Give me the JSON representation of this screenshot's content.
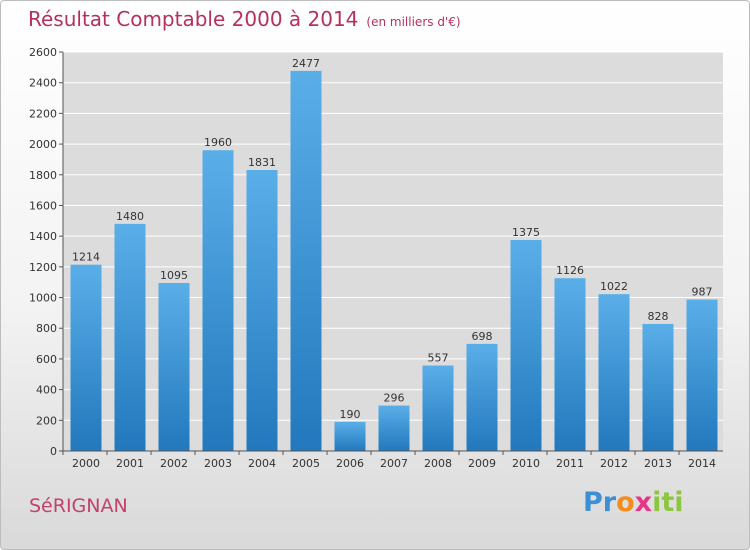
{
  "header": {
    "title": "Résultat Comptable 2000 à 2014",
    "subtitle": "(en milliers d'€)"
  },
  "footer": {
    "place": "SéRIGNAN",
    "logo_text": "Proxiti"
  },
  "colors": {
    "bar_top": "#5aaee8",
    "bar_bottom": "#2378bd",
    "title": "#b5315c",
    "grid": "#ffffff"
  },
  "chart_data": {
    "type": "bar",
    "title": "Résultat Comptable 2000 à 2014",
    "subtitle": "(en milliers d'€)",
    "categories": [
      "2000",
      "2001",
      "2002",
      "2003",
      "2004",
      "2005",
      "2006",
      "2007",
      "2008",
      "2009",
      "2010",
      "2011",
      "2012",
      "2013",
      "2014"
    ],
    "values": [
      1214,
      1480,
      1095,
      1960,
      1831,
      2477,
      190,
      296,
      557,
      698,
      1375,
      1126,
      1022,
      828,
      987
    ],
    "ylim": [
      0,
      2600
    ],
    "yticks": [
      0,
      200,
      400,
      600,
      800,
      1000,
      1200,
      1400,
      1600,
      1800,
      2000,
      2200,
      2400,
      2600
    ],
    "grid": true,
    "xlabel": "",
    "ylabel": ""
  }
}
